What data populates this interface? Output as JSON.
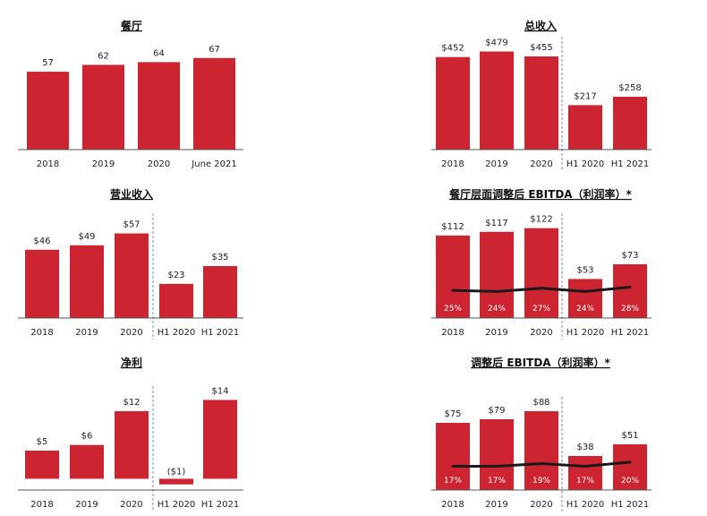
{
  "colors": {
    "bar": "#cc2431",
    "axis": "#555555",
    "divider": "#7a8bb5",
    "margin_line": "#1a1a1a"
  },
  "chart_data": [
    {
      "type": "bar",
      "title": "餐厅",
      "categories": [
        "2018",
        "2019",
        "2020",
        "June 2021"
      ],
      "values": [
        57,
        62,
        64,
        67
      ],
      "value_labels": [
        "57",
        "62",
        "64",
        "67"
      ],
      "ylim": [
        0,
        78
      ]
    },
    {
      "type": "bar",
      "title": "总收入",
      "categories": [
        "2018",
        "2019",
        "2020",
        "H1 2020",
        "H1 2021"
      ],
      "values": [
        452,
        479,
        455,
        217,
        258
      ],
      "value_labels": [
        "$452",
        "$479",
        "$455",
        "$217",
        "$258"
      ],
      "ylim": [
        0,
        525
      ],
      "divider_after_index": 2
    },
    {
      "type": "bar",
      "title": "营业收入",
      "categories": [
        "2018",
        "2019",
        "2020",
        "H1 2020",
        "H1 2021"
      ],
      "values": [
        46,
        49,
        57,
        23,
        35
      ],
      "value_labels": [
        "$46",
        "$49",
        "$57",
        "$23",
        "$35"
      ],
      "ylim": [
        0,
        67
      ],
      "divider_after_index": 2
    },
    {
      "type": "bar",
      "title": "餐厅层面调整后 EBITDA（利润率）*",
      "categories": [
        "2018",
        "2019",
        "2020",
        "H1 2020",
        "H1 2021"
      ],
      "values": [
        112,
        117,
        122,
        53,
        73
      ],
      "value_labels": [
        "$112",
        "$117",
        "$122",
        "$53",
        "$73"
      ],
      "margins": [
        25,
        24,
        27,
        24,
        28
      ],
      "margin_labels": [
        "25%",
        "24%",
        "27%",
        "24%",
        "28%"
      ],
      "ylim": [
        0,
        135
      ],
      "margin_ylim": [
        0,
        90
      ],
      "divider_after_index": 2
    },
    {
      "type": "bar",
      "title": "净利",
      "categories": [
        "2018",
        "2019",
        "2020",
        "H1 2020",
        "H1 2021"
      ],
      "values": [
        5,
        6,
        12,
        -1,
        14
      ],
      "value_labels": [
        "$5",
        "$6",
        "$12",
        "($1)",
        "$14"
      ],
      "ylim": [
        -2,
        15.5
      ],
      "divider_after_index": 2
    },
    {
      "type": "bar",
      "title": "调整后 EBITDA（利润率）*",
      "categories": [
        "2018",
        "2019",
        "2020",
        "H1 2020",
        "H1 2021"
      ],
      "values": [
        75,
        79,
        88,
        38,
        51
      ],
      "value_labels": [
        "$75",
        "$79",
        "$88",
        "$38",
        "$51"
      ],
      "margins": [
        17,
        17,
        19,
        17,
        20
      ],
      "margin_labels": [
        "17%",
        "17%",
        "19%",
        "17%",
        "20%"
      ],
      "ylim": [
        0,
        98
      ],
      "margin_ylim": [
        0,
        63
      ],
      "divider_after_index": 2
    }
  ]
}
